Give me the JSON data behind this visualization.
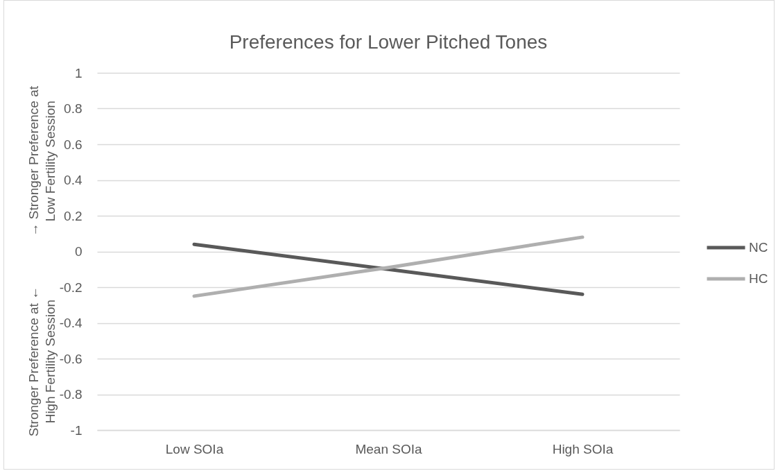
{
  "chart_data": {
    "type": "line",
    "title": "Preferences for Lower Pitched Tones",
    "ylabel": "→ Stronger Preference at Low Fertility Session",
    "annotations": [
      "Stronger Preference at ← High Fertility Session"
    ],
    "categories": [
      "Low SOIa",
      "Mean SOIa",
      "High SOIa"
    ],
    "series": [
      {
        "name": "NC",
        "color": "#595959",
        "values": [
          0.04,
          -0.1,
          -0.24
        ]
      },
      {
        "name": "HC",
        "color": "#afafaf",
        "values": [
          -0.25,
          -0.09,
          0.08
        ]
      }
    ],
    "ylim": [
      -1,
      1
    ],
    "yticks": [
      -1,
      -0.8,
      -0.6,
      -0.4,
      -0.2,
      0,
      0.2,
      0.4,
      0.6,
      0.8,
      1
    ],
    "grid": "y",
    "legend": "right"
  }
}
